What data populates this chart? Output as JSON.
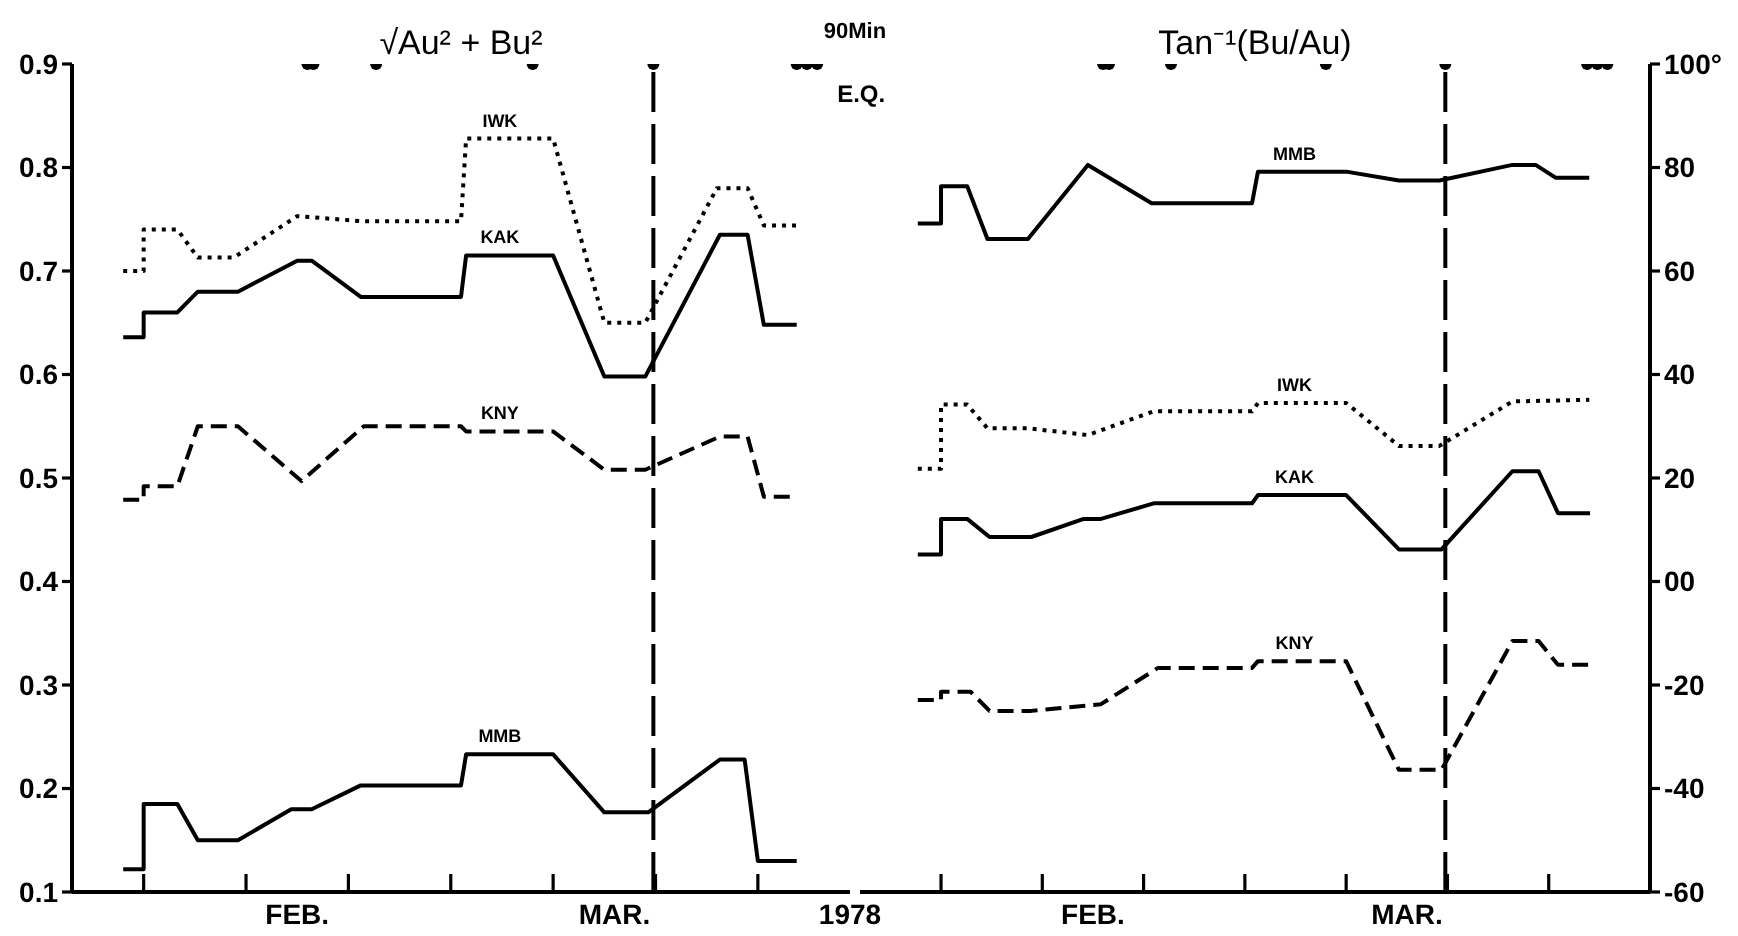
{
  "chart_data": [
    {
      "type": "line",
      "title": "√Au² + Bu²",
      "annotations": [
        "90Min"
      ],
      "xlim": [
        "1978-01-10",
        "1978-03-27"
      ],
      "xticks": [
        {
          "value": "1978-01-17",
          "label": null
        },
        {
          "value": "1978-01-27",
          "label": null
        },
        {
          "value": "1978-02-01",
          "label": "FEB."
        },
        {
          "value": "1978-02-06",
          "label": null
        },
        {
          "value": "1978-02-16",
          "label": null
        },
        {
          "value": "1978-02-26",
          "label": null
        },
        {
          "value": "1978-03-04",
          "label": "MAR."
        },
        {
          "value": "1978-03-08",
          "label": null
        },
        {
          "value": "1978-03-18",
          "label": null
        },
        {
          "value": "1978-03-27",
          "label": "1978"
        }
      ],
      "ylim": [
        0.1,
        0.9
      ],
      "yticks": [
        0.1,
        0.2,
        0.3,
        0.4,
        0.5,
        0.6,
        0.7,
        0.8,
        0.9
      ],
      "ref_lines": [
        {
          "axis": "x",
          "value": "1978-03-07T19:00",
          "label": null,
          "line_style": "dashed",
          "color": "#000000"
        }
      ],
      "series": [
        {
          "name": "IWK",
          "color": "#000000",
          "line_style": "dotted",
          "x": [
            "1978-01-15",
            "1978-01-17",
            "1978-01-17",
            "1978-01-20T07:00",
            "1978-01-22T07:00",
            "1978-01-25T19:00",
            "1978-02-01",
            "1978-02-07T12:00",
            "1978-02-17",
            "1978-02-17T12:00",
            "1978-02-26",
            "1978-03-03",
            "1978-03-07",
            "1978-03-14",
            "1978-03-17",
            "1978-03-18T14:00",
            "1978-03-21T19:00"
          ],
          "values": [
            0.7,
            0.7,
            0.74,
            0.74,
            0.713,
            0.713,
            0.753,
            0.748,
            0.748,
            0.828,
            0.828,
            0.65,
            0.65,
            0.78,
            0.78,
            0.744,
            0.744
          ]
        },
        {
          "name": "KAK",
          "color": "#000000",
          "line_style": "solid",
          "x": [
            "1978-01-15",
            "1978-01-17",
            "1978-01-17",
            "1978-01-20T07:00",
            "1978-01-22T07:00",
            "1978-01-26T05:00",
            "1978-02-01",
            "1978-02-02T10:00",
            "1978-02-07T05:00",
            "1978-02-17",
            "1978-02-17T12:00",
            "1978-02-26",
            "1978-03-03",
            "1978-03-07",
            "1978-03-14T07:00",
            "1978-03-17",
            "1978-03-18T14:00",
            "1978-03-21T19:00"
          ],
          "values": [
            0.636,
            0.636,
            0.66,
            0.66,
            0.68,
            0.68,
            0.71,
            0.71,
            0.675,
            0.675,
            0.715,
            0.715,
            0.598,
            0.598,
            0.735,
            0.735,
            0.648,
            0.648
          ]
        },
        {
          "name": "KNY",
          "color": "#000000",
          "line_style": "dashed",
          "x": [
            "1978-01-15",
            "1978-01-17",
            "1978-01-17",
            "1978-01-20T07:00",
            "1978-01-22T07:00",
            "1978-01-26T05:00",
            "1978-02-01T10:00",
            "1978-02-07T12:00",
            "1978-02-17",
            "1978-02-17T12:00",
            "1978-02-26",
            "1978-03-03",
            "1978-03-07",
            "1978-03-14T07:00",
            "1978-03-17",
            "1978-03-18T14:00",
            "1978-03-21T19:00"
          ],
          "values": [
            0.479,
            0.479,
            0.492,
            0.492,
            0.55,
            0.55,
            0.497,
            0.55,
            0.55,
            0.545,
            0.545,
            0.508,
            0.508,
            0.54,
            0.54,
            0.482,
            0.482
          ]
        },
        {
          "name": "MMB",
          "color": "#000000",
          "line_style": "solid",
          "x": [
            "1978-01-15",
            "1978-01-17",
            "1978-01-17",
            "1978-01-20T07:00",
            "1978-01-22T07:00",
            "1978-01-26T05:00",
            "1978-01-31T10:00",
            "1978-02-02T10:00",
            "1978-02-07T05:00",
            "1978-02-17",
            "1978-02-17T12:00",
            "1978-02-26",
            "1978-03-03",
            "1978-03-07T07:00",
            "1978-03-14T07:00",
            "1978-03-16T17:00",
            "1978-03-18",
            "1978-03-21T19:00"
          ],
          "values": [
            0.122,
            0.122,
            0.185,
            0.185,
            0.15,
            0.15,
            0.18,
            0.18,
            0.203,
            0.203,
            0.233,
            0.233,
            0.177,
            0.177,
            0.228,
            0.228,
            0.13,
            0.13
          ]
        },
        {
          "name": "E.Q.",
          "type": "scatter",
          "color": "#000000",
          "x": [
            "1978-02-02",
            "1978-02-02T14:00",
            "1978-02-08T17:00",
            "1978-02-24",
            "1978-03-07T19:00",
            "1978-03-21T19:00",
            "1978-03-22T19:00",
            "1978-03-23T19:00"
          ],
          "values": [
            0.9,
            0.9,
            0.9,
            0.9,
            0.9,
            0.9,
            0.9,
            0.9
          ]
        }
      ]
    },
    {
      "type": "line",
      "title": "Tan⁻¹(Bu/Au)",
      "xlim": [
        "1978-01-09",
        "1978-03-28"
      ],
      "xticks": [
        {
          "value": "1978-01-17",
          "label": null
        },
        {
          "value": "1978-01-27",
          "label": null
        },
        {
          "value": "1978-02-01",
          "label": "FEB."
        },
        {
          "value": "1978-02-06",
          "label": null
        },
        {
          "value": "1978-02-16",
          "label": null
        },
        {
          "value": "1978-02-26",
          "label": null
        },
        {
          "value": "1978-03-04",
          "label": "MAR."
        },
        {
          "value": "1978-03-08",
          "label": null
        },
        {
          "value": "1978-03-18",
          "label": null
        }
      ],
      "ylim": [
        -60,
        100
      ],
      "yticks": [
        -60,
        -40,
        -20,
        {
          "value": 0,
          "label": "00"
        },
        20,
        40,
        60,
        80,
        {
          "value": 100,
          "label": "100°"
        }
      ],
      "ref_lines": [
        {
          "axis": "x",
          "value": "1978-03-07T19:00",
          "label": null,
          "line_style": "dashed",
          "color": "#000000"
        }
      ],
      "series": [
        {
          "name": "MMB",
          "color": "#000000",
          "line_style": "solid",
          "x": [
            "1978-01-14T17:00",
            "1978-01-17",
            "1978-01-17",
            "1978-01-19T14:00",
            "1978-01-21T14:00",
            "1978-01-25T14:00",
            "1978-01-31T12:00",
            "1978-02-06T19:00",
            "1978-02-16T17:00",
            "1978-02-17T07:00",
            "1978-02-26",
            "1978-03-03T05:00",
            "1978-03-07T05:00",
            "1978-03-14T10:00",
            "1978-03-16T17:00",
            "1978-03-18T17:00",
            "1978-03-22"
          ],
          "values": [
            69.2,
            69.2,
            76.4,
            76.4,
            66.2,
            66.2,
            80.5,
            73.1,
            73.1,
            79.2,
            79.2,
            77.5,
            77.5,
            80.5,
            80.5,
            78,
            78
          ]
        },
        {
          "name": "IWK",
          "color": "#000000",
          "line_style": "dotted",
          "x": [
            "1978-01-14T17:00",
            "1978-01-17",
            "1978-01-17",
            "1978-01-19T14:00",
            "1978-01-21T14:00",
            "1978-01-25T14:00",
            "1978-01-31T12:00",
            "1978-02-07",
            "1978-02-16T17:00",
            "1978-02-17T07:00",
            "1978-02-26",
            "1978-03-03T05:00",
            "1978-03-07T05:00",
            "1978-03-14T10:00",
            "1978-03-22"
          ],
          "values": [
            21.8,
            21.8,
            34.2,
            34.2,
            29.6,
            29.6,
            28.3,
            32.9,
            32.9,
            34.5,
            34.5,
            26.2,
            26.2,
            34.8,
            35.1
          ]
        },
        {
          "name": "KAK",
          "color": "#000000",
          "line_style": "solid",
          "x": [
            "1978-01-14T17:00",
            "1978-01-17",
            "1978-01-17",
            "1978-01-19T14:00",
            "1978-01-21T19:00",
            "1978-01-25T22:00",
            "1978-01-31T02:00",
            "1978-02-01T19:00",
            "1978-02-07",
            "1978-02-16T17:00",
            "1978-02-17T07:00",
            "1978-02-26",
            "1978-03-03T05:00",
            "1978-03-07T10:00",
            "1978-03-14T10:00",
            "1978-03-17",
            "1978-03-18T22:00",
            "1978-03-22T02:00"
          ],
          "values": [
            5.2,
            5.2,
            12.1,
            12.1,
            8.6,
            8.6,
            12.1,
            12.1,
            15.1,
            15.1,
            16.7,
            16.7,
            6.2,
            6.2,
            21.3,
            21.3,
            13.2,
            13.2
          ]
        },
        {
          "name": "KNY",
          "color": "#000000",
          "line_style": "dashed",
          "x": [
            "1978-01-14T17:00",
            "1978-01-17",
            "1978-01-17",
            "1978-01-19T22:00",
            "1978-01-21T19:00",
            "1978-01-25T22:00",
            "1978-02-01T19:00",
            "1978-02-07T10:00",
            "1978-02-16T17:00",
            "1978-02-17T07:00",
            "1978-02-26",
            "1978-03-03T05:00",
            "1978-03-07T10:00",
            "1978-03-14T10:00",
            "1978-03-17",
            "1978-03-18T22:00",
            "1978-03-22T02:00"
          ],
          "values": [
            -22.9,
            -22.9,
            -21.3,
            -21.3,
            -25,
            -25,
            -23.7,
            -16.7,
            -16.7,
            -15.4,
            -15.4,
            -36.4,
            -36.4,
            -11.5,
            -11.5,
            -16.1,
            -16.1
          ]
        },
        {
          "type": "scatter",
          "color": "#000000",
          "x": [
            "1978-02-02",
            "1978-02-02T14:00",
            "1978-02-08T17:00",
            "1978-02-24",
            "1978-03-07T19:00",
            "1978-03-21T19:00",
            "1978-03-22T19:00",
            "1978-03-23T19:00"
          ],
          "values": [
            100,
            100,
            100,
            100,
            100,
            100,
            100,
            100
          ]
        }
      ]
    }
  ]
}
